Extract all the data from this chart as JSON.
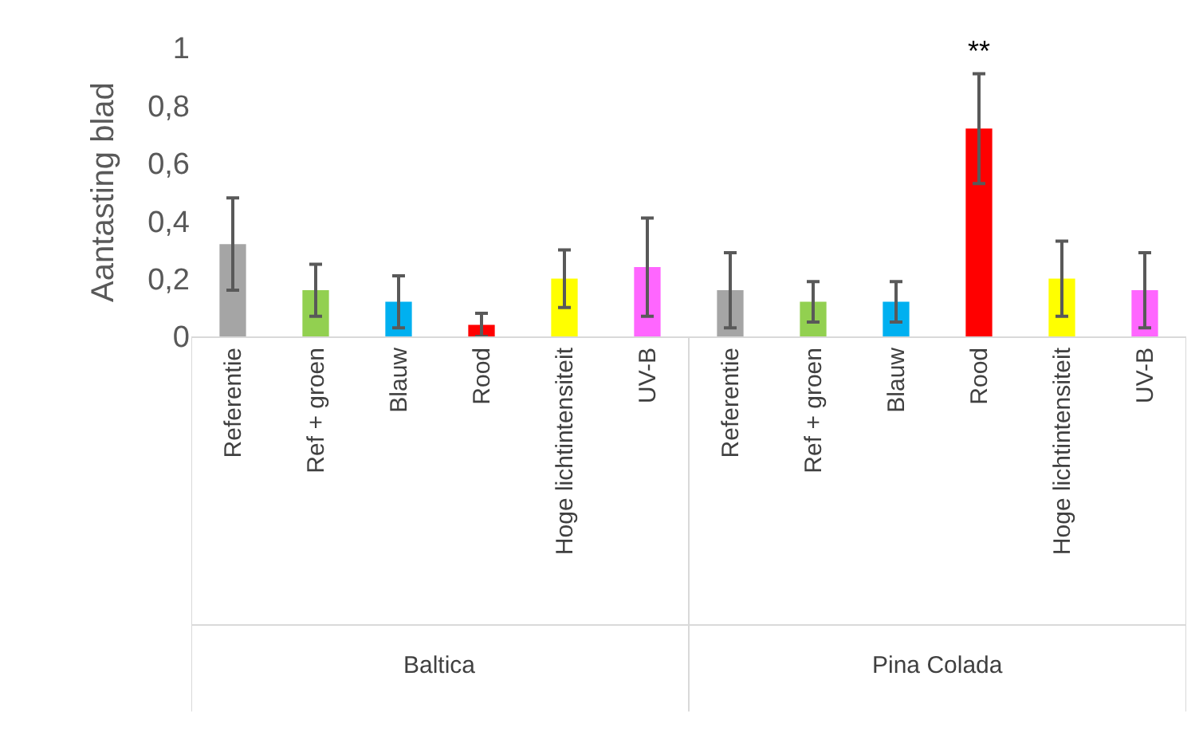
{
  "chart_data": {
    "type": "bar",
    "ylabel": "Aantasting blad",
    "categories": [
      "Referentie",
      "Ref + groen",
      "Blauw",
      "Rood",
      "Hoge lichtintensiteit",
      "UV-B",
      "Referentie",
      "Ref + groen",
      "Blauw",
      "Rood",
      "Hoge lichtintensiteit",
      "UV-B"
    ],
    "values": [
      0.32,
      0.16,
      0.12,
      0.04,
      0.2,
      0.24,
      0.16,
      0.12,
      0.12,
      0.72,
      0.2,
      0.16
    ],
    "errors": [
      0.16,
      0.09,
      0.09,
      0.04,
      0.1,
      0.17,
      0.13,
      0.07,
      0.07,
      0.19,
      0.13,
      0.13
    ],
    "colors": [
      "#a5a5a5",
      "#92d050",
      "#00b0f0",
      "#ff0000",
      "#ffff00",
      "#ff66ff",
      "#a5a5a5",
      "#92d050",
      "#00b0f0",
      "#ff0000",
      "#ffff00",
      "#ff66ff"
    ],
    "ylim": [
      0,
      1
    ],
    "yticks": [
      0,
      {
        "value": 0.2,
        "label": "0,2"
      },
      {
        "value": 0.4,
        "label": "0,4"
      },
      {
        "value": 0.6,
        "label": "0,6"
      },
      {
        "value": 0.8,
        "label": "0,8"
      },
      1
    ],
    "annotations": [
      "**",
      "Baltica",
      "Pina Colada"
    ],
    "legend": false
  }
}
